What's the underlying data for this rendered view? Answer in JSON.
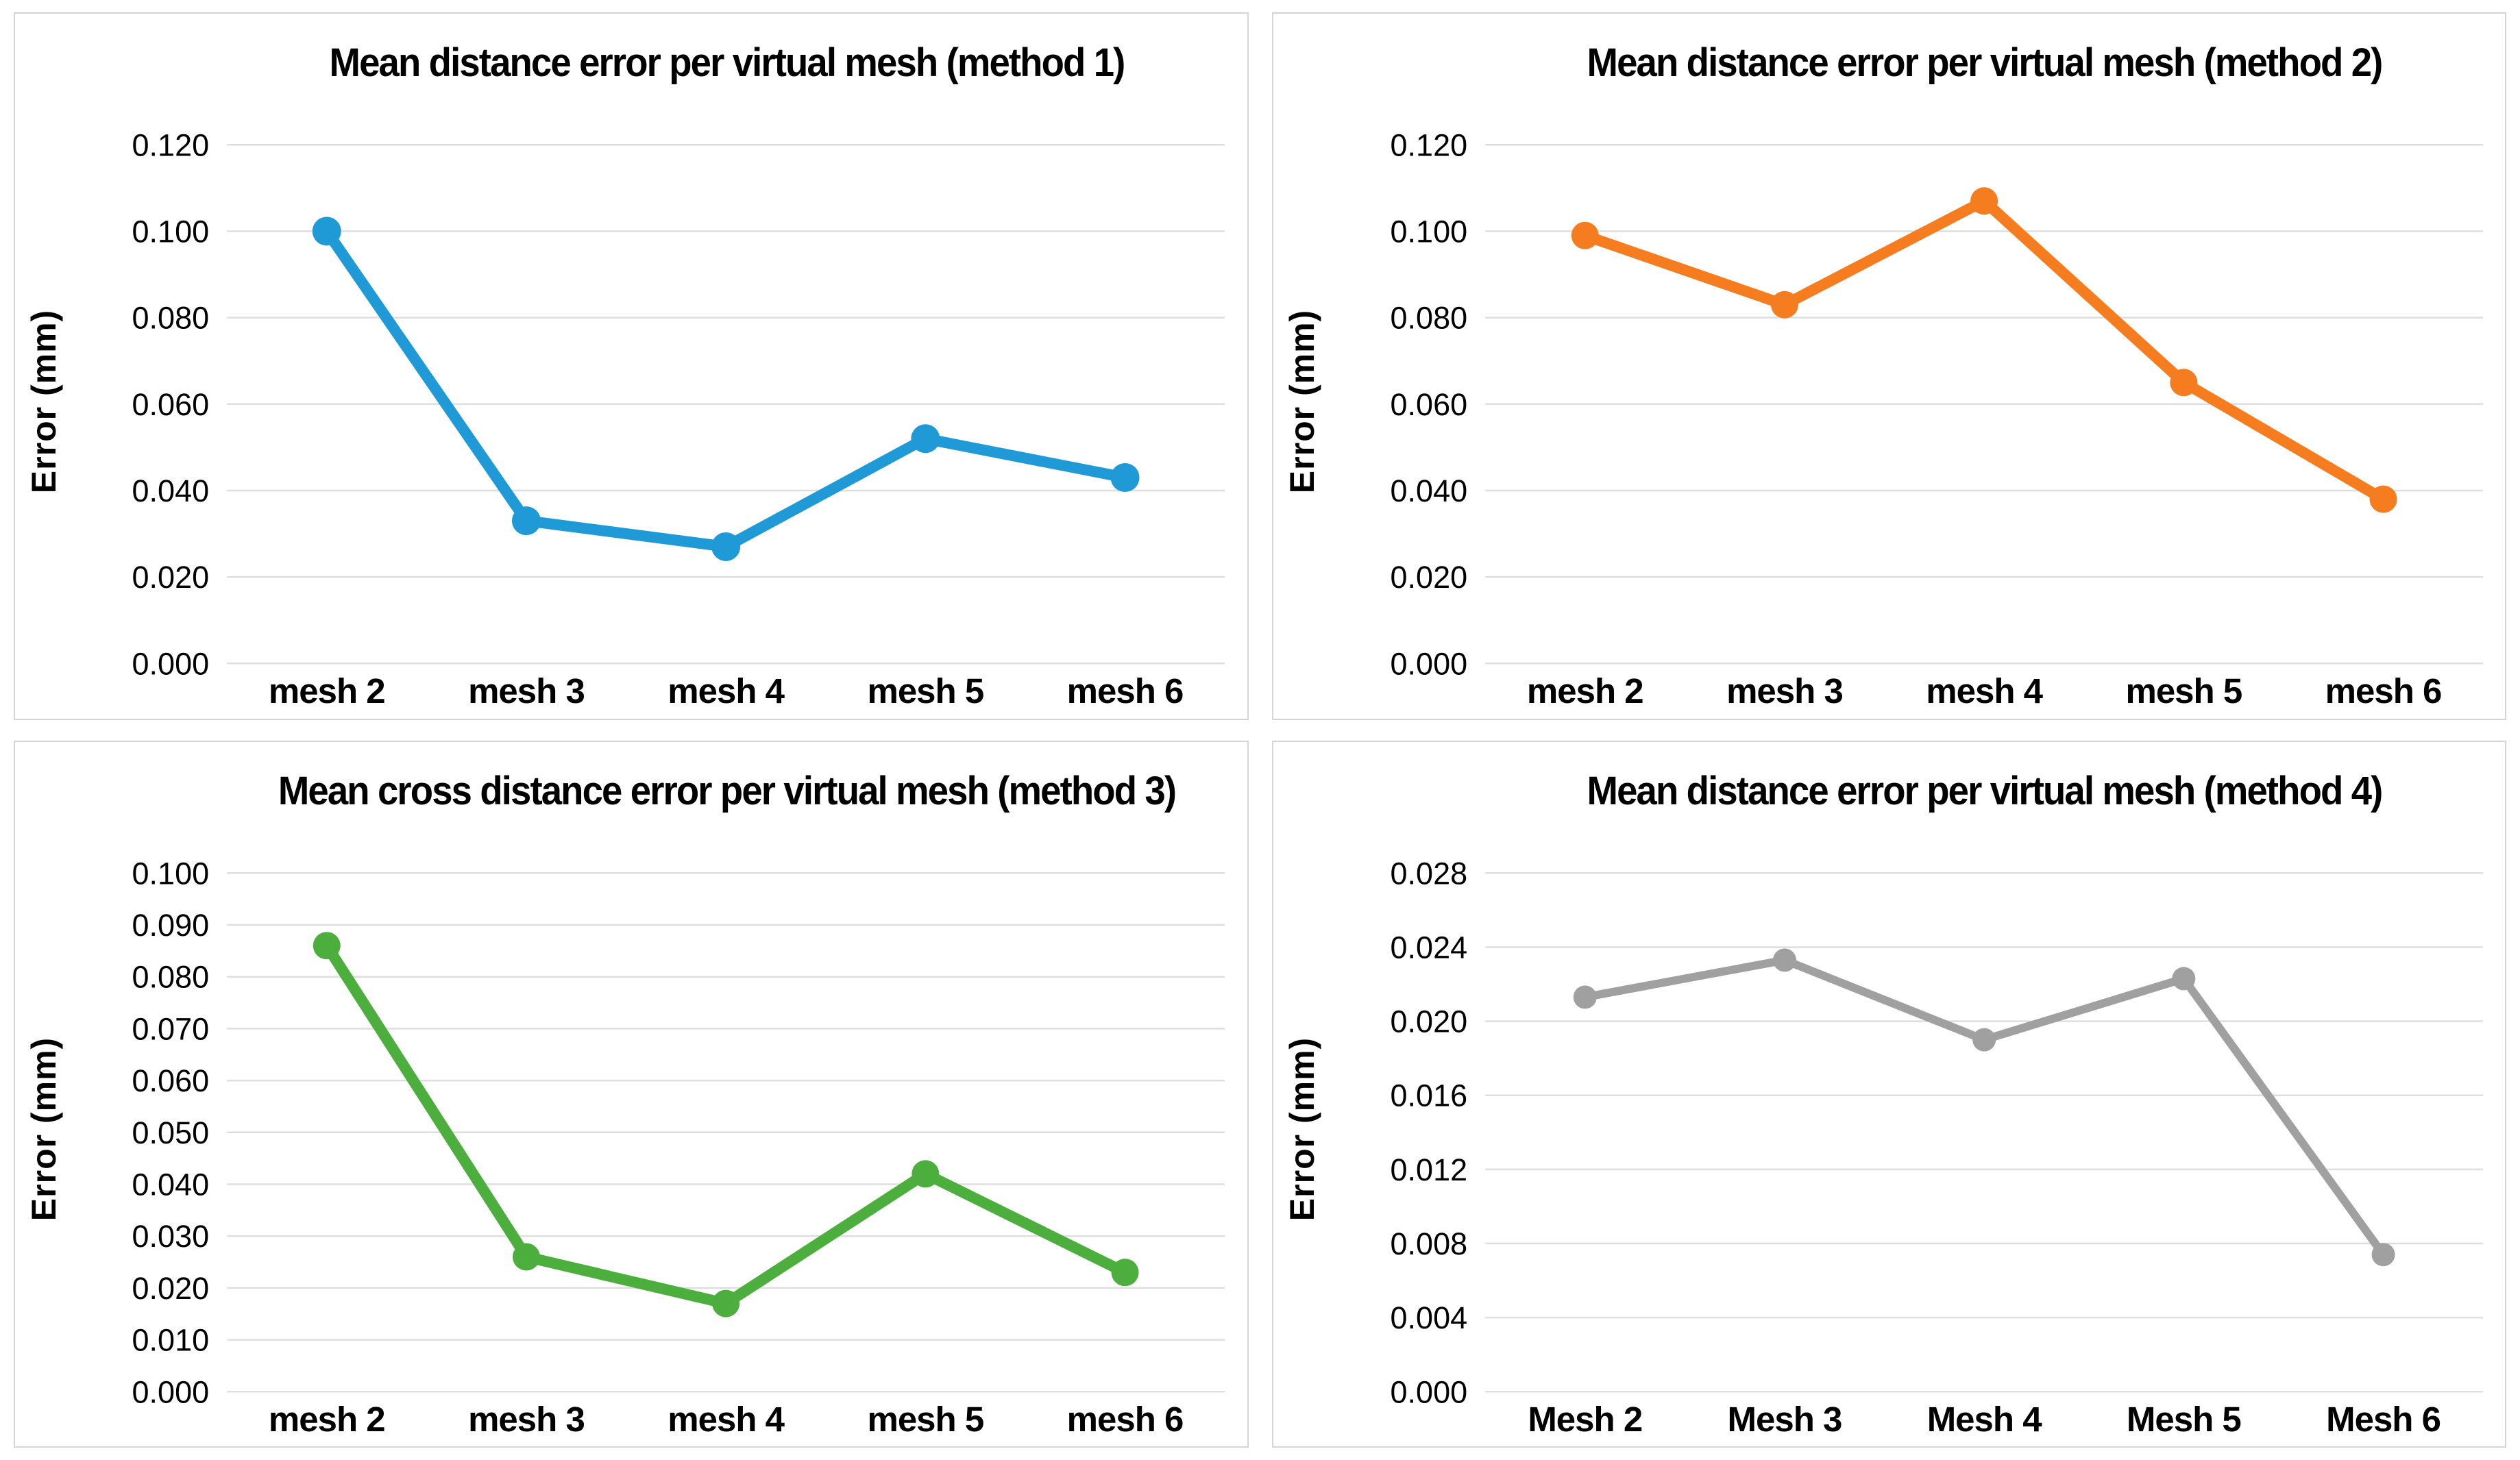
{
  "page": {
    "background_color": "#ffffff",
    "panel_border_color": "#d5d5d5",
    "gridline_color": "#dedede",
    "text_color": "#000000"
  },
  "chart_data": [
    {
      "type": "line",
      "title": "Mean distance error per virtual mesh (method 1)",
      "ylabel": "Error (mm)",
      "xlabel": "",
      "color": "#1f9ad7",
      "categories": [
        "mesh 2",
        "mesh 3",
        "mesh 4",
        "mesh 5",
        "mesh 6"
      ],
      "values": [
        0.1,
        0.033,
        0.027,
        0.052,
        0.043
      ],
      "ylim": [
        0,
        0.12
      ],
      "ystep": 0.02,
      "tick_labels": [
        "0.120",
        "0.100",
        "0.080",
        "0.060",
        "0.040",
        "0.020",
        "0.000"
      ],
      "grid": "horizontal",
      "legend": "none",
      "markers": "circle"
    },
    {
      "type": "line",
      "title": "Mean distance error per virtual mesh (method 2)",
      "ylabel": "Error (mm)",
      "xlabel": "",
      "color": "#f57d20",
      "categories": [
        "mesh 2",
        "mesh 3",
        "mesh 4",
        "mesh 5",
        "mesh 6"
      ],
      "values": [
        0.099,
        0.083,
        0.107,
        0.065,
        0.038
      ],
      "ylim": [
        0,
        0.12
      ],
      "ystep": 0.02,
      "tick_labels": [
        "0.120",
        "0.100",
        "0.080",
        "0.060",
        "0.040",
        "0.020",
        "0.000"
      ],
      "grid": "horizontal",
      "legend": "none",
      "markers": "circle"
    },
    {
      "type": "line",
      "title": "Mean cross distance error per virtual mesh (method 3)",
      "ylabel": "Error (mm)",
      "xlabel": "",
      "color": "#4cae3c",
      "categories": [
        "mesh 2",
        "mesh 3",
        "mesh 4",
        "mesh 5",
        "mesh 6"
      ],
      "values": [
        0.086,
        0.026,
        0.017,
        0.042,
        0.023
      ],
      "ylim": [
        0,
        0.1
      ],
      "ystep": 0.01,
      "tick_labels": [
        "0.100",
        "0.090",
        "0.080",
        "0.070",
        "0.060",
        "0.050",
        "0.040",
        "0.030",
        "0.020",
        "0.010",
        "0.000"
      ],
      "grid": "horizontal",
      "legend": "none",
      "markers": "circle"
    },
    {
      "type": "line",
      "title": "Mean distance error per virtual mesh (method 4)",
      "ylabel": "Error (mm)",
      "xlabel": "",
      "color": "#a0a0a0",
      "categories": [
        "Mesh 2",
        "Mesh 3",
        "Mesh 4",
        "Mesh 5",
        "Mesh 6"
      ],
      "values": [
        0.0213,
        0.0233,
        0.019,
        0.0223,
        0.0074
      ],
      "ylim": [
        0,
        0.028
      ],
      "ystep": 0.004,
      "tick_labels": [
        "0.028",
        "0.024",
        "0.020",
        "0.016",
        "0.012",
        "0.008",
        "0.004",
        "0.000"
      ],
      "grid": "horizontal",
      "legend": "none",
      "markers": "circle"
    }
  ]
}
